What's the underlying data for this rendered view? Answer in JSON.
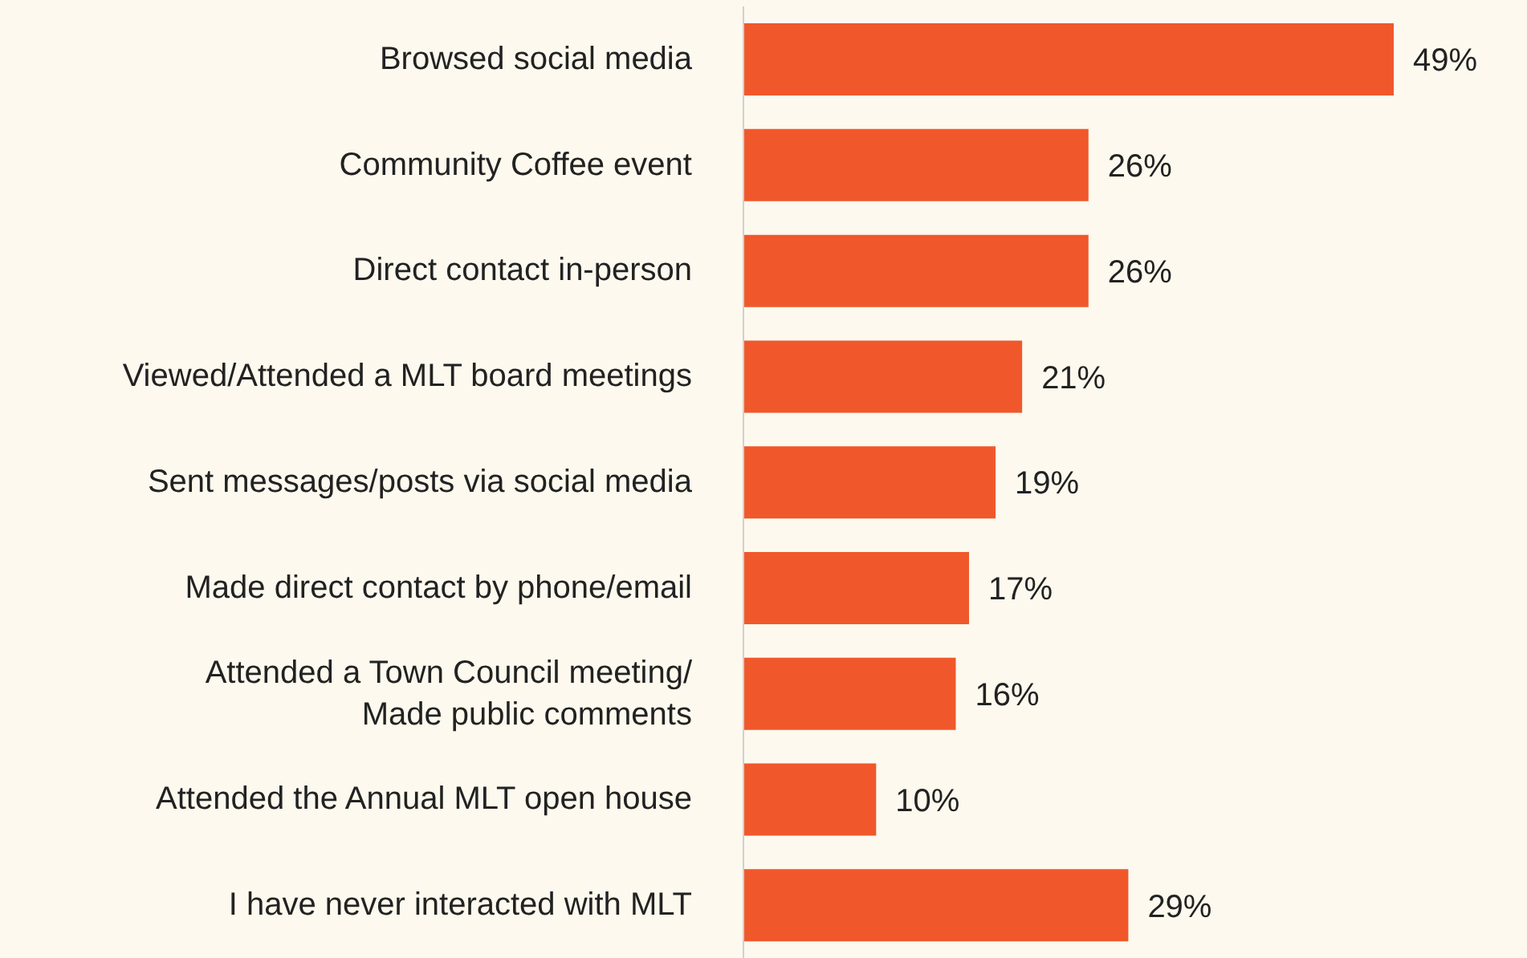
{
  "chart_data": {
    "type": "bar",
    "orientation": "horizontal",
    "categories": [
      "Browsed social media",
      "Community Coffee event",
      "Direct contact in-person",
      "Viewed/Attended a MLT board meetings",
      "Sent messages/posts via social media",
      "Made direct contact by phone/email",
      "Attended a Town Council meeting/\nMade public comments",
      "Attended the Annual MLT open house",
      "I have never interacted with MLT"
    ],
    "values": [
      49,
      26,
      26,
      21,
      19,
      17,
      16,
      10,
      29
    ],
    "value_labels": [
      "49%",
      "26%",
      "26%",
      "21%",
      "19%",
      "17%",
      "16%",
      "10%",
      "29%"
    ],
    "color": "#f0582c",
    "grid": false,
    "legend": false
  }
}
